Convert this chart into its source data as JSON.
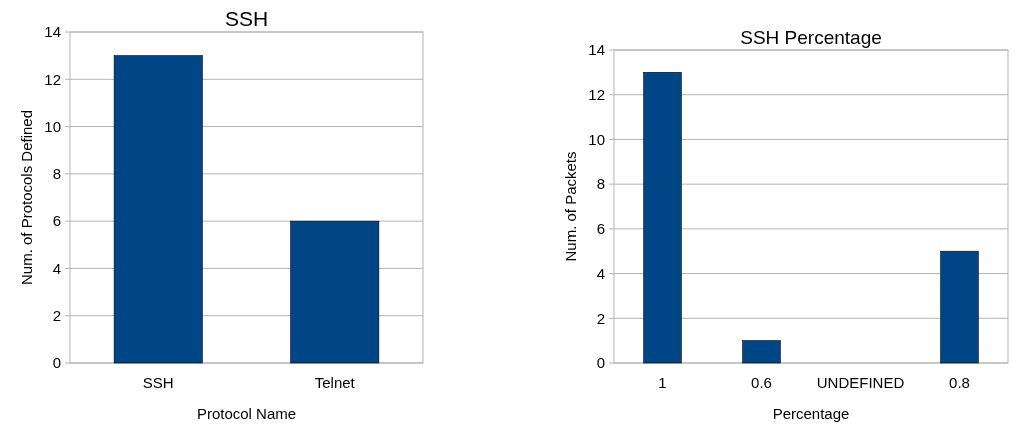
{
  "chart_data": [
    {
      "type": "bar",
      "title": "SSH",
      "xlabel": "Protocol Name",
      "ylabel": "Num. of Protocols Defined",
      "categories": [
        "SSH",
        "Telnet"
      ],
      "values": [
        13,
        6
      ],
      "color": "#004586",
      "ylim": [
        0,
        14
      ],
      "yticks": [
        0,
        2,
        4,
        6,
        8,
        10,
        12,
        14
      ],
      "grid": "y"
    },
    {
      "type": "bar",
      "title": "SSH Percentage",
      "xlabel": "Percentage",
      "ylabel": "Num. of Packets",
      "categories": [
        "1",
        "0.6",
        "UNDEFINED",
        "0.8"
      ],
      "values": [
        13,
        1,
        0,
        5
      ],
      "color": "#004586",
      "ylim": [
        0,
        14
      ],
      "yticks": [
        0,
        2,
        4,
        6,
        8,
        10,
        12,
        14
      ],
      "grid": "y"
    }
  ]
}
